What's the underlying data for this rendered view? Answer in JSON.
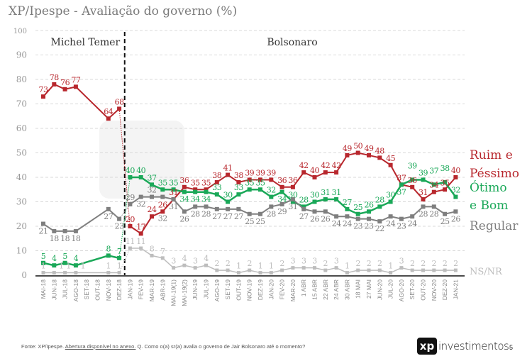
{
  "title": "XP/Ipespe - Avaliação do governo (%)",
  "footer": {
    "source": "Fonte: XP/Ipespe.",
    "link": "Abertura disponível no anexo.",
    "question": "Q. Como o(a) sr(a) avalia o governo de Jair Bolsonaro até o momento?"
  },
  "logo": {
    "mark": "xp",
    "text": "investimentos"
  },
  "page_number": "5",
  "watermark": "investimentos",
  "chart_data": {
    "type": "line",
    "title": "XP/Ipespe - Avaliação do governo (%)",
    "ylim": [
      0,
      100
    ],
    "yticks": [
      0,
      10,
      20,
      30,
      40,
      50,
      60,
      70,
      80,
      90,
      100
    ],
    "grid": true,
    "legend_placement": "right",
    "eras": [
      {
        "label": "Michel Temer",
        "start": "MAI-18",
        "end": "DEZ-18"
      },
      {
        "label": "Bolsonaro",
        "start": "JAN-19",
        "end": "JAN-21"
      }
    ],
    "categories": [
      "MAI-18",
      "JUN-18",
      "JUL-18",
      "AGO-18",
      "SET-18",
      "OUT-18",
      "NOV-18",
      "DEZ-18",
      "JAN-19",
      "FEV-19",
      "MAR-19",
      "ABR-19",
      "MAI-19(1)",
      "MAI-19(2)",
      "JUN-19",
      "JUL-19",
      "AGO-19",
      "SET-19",
      "OUT-19",
      "NOV-19",
      "DEZ-19",
      "JAN-20",
      "FEV-20",
      "MAR-20",
      "1 ABR",
      "15 ABR",
      "22 ABR",
      "24 ABR",
      "30 ABR",
      "18 MAI",
      "27 MAI",
      "JUN-20",
      "JUL-20",
      "AGO-20",
      "SET-20",
      "OUT-20",
      "NOV-20",
      "DEZ-20",
      "JAN-21"
    ],
    "series": [
      {
        "name": "Ruim e Péssimo",
        "color": "#b8272d",
        "values": [
          73,
          78,
          76,
          77,
          null,
          null,
          64,
          68,
          20,
          17,
          24,
          26,
          31,
          36,
          35,
          35,
          38,
          41,
          38,
          39,
          39,
          39,
          36,
          36,
          42,
          40,
          42,
          42,
          49,
          50,
          49,
          48,
          45,
          37,
          36,
          31,
          34,
          35,
          40
        ]
      },
      {
        "name": "Ótimo e Bom",
        "color": "#1aa858",
        "values": [
          5,
          4,
          5,
          4,
          null,
          null,
          8,
          7,
          40,
          40,
          37,
          35,
          35,
          34,
          34,
          34,
          33,
          30,
          33,
          35,
          35,
          32,
          34,
          30,
          28,
          30,
          31,
          31,
          27,
          25,
          26,
          28,
          30,
          37,
          39,
          39,
          37,
          38,
          32
        ]
      },
      {
        "name": "Regular",
        "color": "#7f7f7f",
        "values": [
          21,
          18,
          18,
          18,
          null,
          null,
          27,
          23,
          29,
          32,
          32,
          32,
          31,
          26,
          28,
          28,
          27,
          27,
          27,
          25,
          25,
          28,
          29,
          31,
          27,
          26,
          26,
          24,
          24,
          23,
          23,
          22,
          24,
          23,
          24,
          28,
          28,
          25,
          26
        ]
      },
      {
        "name": "NS/NR",
        "color": "#bdbdbd",
        "values": [
          1,
          1,
          1,
          1,
          null,
          null,
          1,
          1,
          11,
          11,
          8,
          7,
          3,
          4,
          3,
          4,
          2,
          2,
          1,
          2,
          1,
          1,
          2,
          3,
          3,
          3,
          2,
          3,
          1,
          2,
          2,
          2,
          1,
          3,
          2,
          2,
          2,
          2,
          2
        ]
      }
    ]
  }
}
